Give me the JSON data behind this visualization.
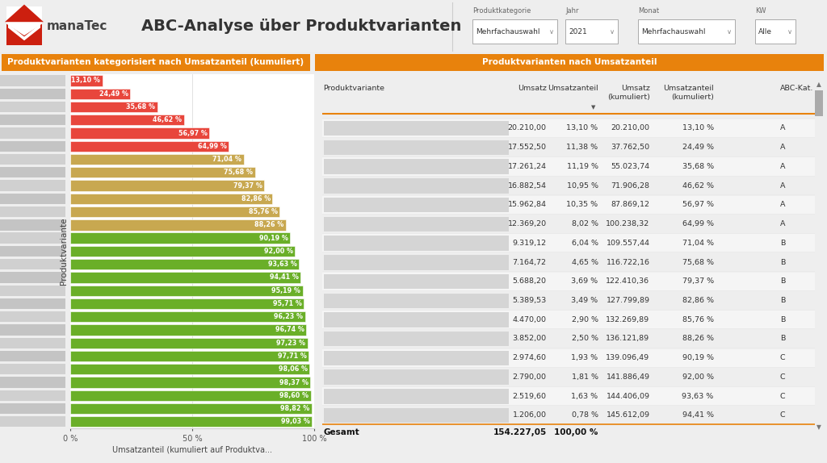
{
  "title": "ABC-Analyse über Produktvarianten",
  "orange": "#E8820C",
  "header_filter_labels": [
    "Produktkategorie",
    "Jahr",
    "Monat",
    "KW"
  ],
  "header_filter_values": [
    "Mehrfachauswahl",
    "2021",
    "Mehrfachauswahl",
    "Alle"
  ],
  "left_chart_title": "Produktvarianten kategorisiert nach Umsatzanteil (kumuliert)",
  "right_table_title": "Produktvarianten nach Umsatzanteil",
  "bar_values": [
    13.1,
    24.49,
    35.68,
    46.62,
    56.97,
    64.99,
    71.04,
    75.68,
    79.37,
    82.86,
    85.76,
    88.26,
    90.19,
    92.0,
    93.63,
    94.41,
    95.19,
    95.71,
    96.23,
    96.74,
    97.23,
    97.71,
    98.06,
    98.37,
    98.6,
    98.82,
    99.03
  ],
  "bar_labels": [
    "13,10 %",
    "24,49 %",
    "35,68 %",
    "46,62 %",
    "56,97 %",
    "64,99 %",
    "71,04 %",
    "75,68 %",
    "79,37 %",
    "82,86 %",
    "85,76 %",
    "88,26 %",
    "90,19 %",
    "92,00 %",
    "93,63 %",
    "94,41 %",
    "95,19 %",
    "95,71 %",
    "96,23 %",
    "96,74 %",
    "97,23 %",
    "97,71 %",
    "98,06 %",
    "98,37 %",
    "98,60 %",
    "98,82 %",
    "99,03 %"
  ],
  "bar_colors": [
    "#E8463C",
    "#E8463C",
    "#E8463C",
    "#E8463C",
    "#E8463C",
    "#E8463C",
    "#C8A850",
    "#C8A850",
    "#C8A850",
    "#C8A850",
    "#C8A850",
    "#C8A850",
    "#6AAF28",
    "#6AAF28",
    "#6AAF28",
    "#6AAF28",
    "#6AAF28",
    "#6AAF28",
    "#6AAF28",
    "#6AAF28",
    "#6AAF28",
    "#6AAF28",
    "#6AAF28",
    "#6AAF28",
    "#6AAF28",
    "#6AAF28",
    "#6AAF28"
  ],
  "xlabel": "Umsatzanteil (kumuliert auf Produktva...",
  "ylabel": "Produktvariante",
  "table_umsatz": [
    "20.210,00",
    "17.552,50",
    "17.261,24",
    "16.882,54",
    "15.962,84",
    "12.369,20",
    "9.319,12",
    "7.164,72",
    "5.688,20",
    "5.389,53",
    "4.470,00",
    "3.852,00",
    "2.974,60",
    "2.790,00",
    "2.519,60",
    "1.206,00"
  ],
  "table_umsatzanteil": [
    "13,10 %",
    "11,38 %",
    "11,19 %",
    "10,95 %",
    "10,35 %",
    "8,02 %",
    "6,04 %",
    "4,65 %",
    "3,69 %",
    "3,49 %",
    "2,90 %",
    "2,50 %",
    "1,93 %",
    "1,81 %",
    "1,63 %",
    "0,78 %"
  ],
  "table_umsatz_kum": [
    "20.210,00",
    "37.762,50",
    "55.023,74",
    "71.906,28",
    "87.869,12",
    "100.238,32",
    "109.557,44",
    "116.722,16",
    "122.410,36",
    "127.799,89",
    "132.269,89",
    "136.121,89",
    "139.096,49",
    "141.886,49",
    "144.406,09",
    "145.612,09"
  ],
  "table_umsatzanteil_kum": [
    "13,10 %",
    "24,49 %",
    "35,68 %",
    "46,62 %",
    "56,97 %",
    "64,99 %",
    "71,04 %",
    "75,68 %",
    "79,37 %",
    "82,86 %",
    "85,76 %",
    "88,26 %",
    "90,19 %",
    "92,00 %",
    "93,63 %",
    "94,41 %"
  ],
  "table_abc": [
    "A",
    "A",
    "A",
    "A",
    "A",
    "A",
    "B",
    "B",
    "B",
    "B",
    "B",
    "B",
    "C",
    "C",
    "C",
    "C"
  ],
  "gesamt_umsatz": "154.227,05",
  "gesamt_pct": "100,00 %",
  "bg_light": "#eeeeee",
  "bg_white": "#ffffff",
  "divider_color": "#cccccc"
}
